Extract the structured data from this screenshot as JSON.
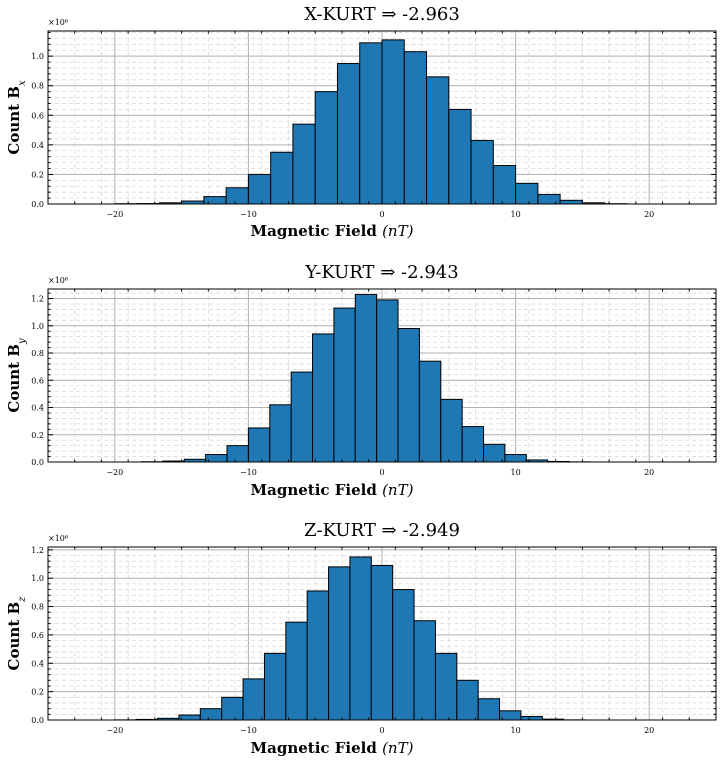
{
  "figure": {
    "background": "#ffffff",
    "bar_color": "#1f77b4",
    "edge_color": "#000000"
  },
  "chart_data": [
    {
      "type": "bar",
      "title": "X-KURT ⇒ -2.963",
      "xlabel_text": "Magnetic Field ",
      "xlabel_math": "(nT)",
      "ylabel_text": "Count B",
      "ylabel_sub": "x",
      "offset_text": "×10⁶",
      "xlim": [
        -25,
        25
      ],
      "ylim": [
        0,
        1.17
      ],
      "xticks": [
        -20,
        -10,
        0,
        10,
        20
      ],
      "yticks": [
        0.0,
        0.2,
        0.4,
        0.6,
        0.8,
        1.0
      ],
      "bin_edges": [
        -20,
        -18.333,
        -16.667,
        -15,
        -13.333,
        -11.667,
        -10,
        -8.333,
        -6.667,
        -5,
        -3.333,
        -1.667,
        0,
        1.667,
        3.333,
        5,
        6.667,
        8.333,
        10,
        11.667,
        13.333,
        15,
        16.667,
        18.333
      ],
      "values": [
        0.002,
        0.003,
        0.008,
        0.02,
        0.05,
        0.11,
        0.2,
        0.35,
        0.54,
        0.76,
        0.95,
        1.09,
        1.11,
        1.03,
        0.86,
        0.64,
        0.43,
        0.26,
        0.14,
        0.065,
        0.025,
        0.008,
        0.002
      ]
    },
    {
      "type": "bar",
      "title": "Y-KURT ⇒ -2.943",
      "xlabel_text": "Magnetic Field ",
      "xlabel_math": "(nT)",
      "ylabel_text": "Count B",
      "ylabel_sub": "y",
      "offset_text": "×10⁶",
      "xlim": [
        -25,
        25
      ],
      "ylim": [
        0,
        1.27
      ],
      "xticks": [
        -20,
        -10,
        0,
        10,
        20
      ],
      "yticks": [
        0.0,
        0.2,
        0.4,
        0.6,
        0.8,
        1.0,
        1.2
      ],
      "bin_edges": [
        -18,
        -16.4,
        -14.8,
        -13.2,
        -11.6,
        -10,
        -8.4,
        -6.8,
        -5.2,
        -3.6,
        -2,
        -0.4,
        1.2,
        2.8,
        4.4,
        6,
        7.6,
        9.2,
        10.8,
        12.4,
        14,
        15.6
      ],
      "values": [
        0.002,
        0.007,
        0.02,
        0.055,
        0.12,
        0.25,
        0.42,
        0.66,
        0.94,
        1.13,
        1.23,
        1.19,
        0.98,
        0.74,
        0.46,
        0.26,
        0.13,
        0.055,
        0.015,
        0.004,
        0.001
      ]
    },
    {
      "type": "bar",
      "title": "Z-KURT ⇒ -2.949",
      "xlabel_text": "Magnetic Field ",
      "xlabel_math": "(nT)",
      "ylabel_text": "Count B",
      "ylabel_sub": "z",
      "offset_text": "×10⁶",
      "xlim": [
        -25,
        25
      ],
      "ylim": [
        0,
        1.22
      ],
      "xticks": [
        -20,
        -10,
        0,
        10,
        20
      ],
      "yticks": [
        0.0,
        0.2,
        0.4,
        0.6,
        0.8,
        1.0,
        1.2
      ],
      "bin_edges": [
        -20,
        -18.4,
        -16.8,
        -15.2,
        -13.6,
        -12,
        -10.4,
        -8.8,
        -7.2,
        -5.6,
        -4,
        -2.4,
        -0.8,
        0.8,
        2.4,
        4,
        5.6,
        7.2,
        8.8,
        10.4,
        12,
        13.6,
        15.2
      ],
      "values": [
        0.001,
        0.004,
        0.012,
        0.035,
        0.08,
        0.16,
        0.29,
        0.47,
        0.69,
        0.91,
        1.08,
        1.15,
        1.09,
        0.92,
        0.7,
        0.47,
        0.28,
        0.15,
        0.065,
        0.025,
        0.006,
        0.001
      ]
    }
  ]
}
